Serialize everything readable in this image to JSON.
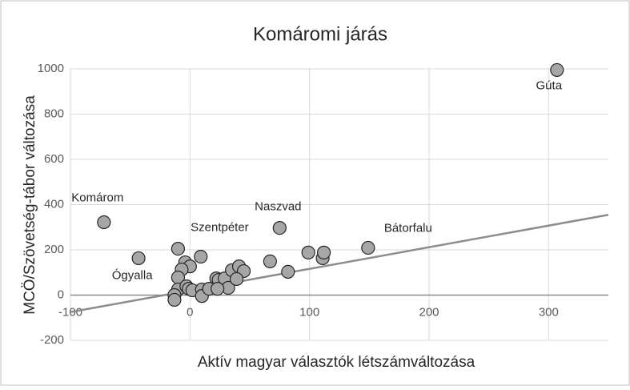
{
  "chart_data": {
    "type": "scatter",
    "title": "Komáromi járás",
    "x_label": "Aktív magyar választók létszámváltozása",
    "y_label": "MCÖ/Szövetség-tábor változása",
    "x": [
      307,
      -72,
      -43,
      -10,
      75,
      149,
      9,
      -4,
      0,
      -7,
      -10,
      -10,
      -13,
      -13,
      -3,
      -1,
      2,
      10,
      10,
      16,
      22,
      24,
      29,
      32,
      23,
      35,
      41,
      45,
      39,
      67,
      82,
      99,
      111,
      112
    ],
    "y": [
      995,
      322,
      163,
      205,
      297,
      209,
      170,
      145,
      127,
      113,
      78,
      25,
      0,
      -21,
      39,
      28,
      21,
      25,
      -4,
      28,
      74,
      67,
      74,
      32,
      28,
      110,
      127,
      106,
      71,
      149,
      103,
      188,
      163,
      188
    ],
    "labels": [
      "Gúta",
      "Komárom",
      "Ógyalla",
      "Szentpéter",
      "Naszvad",
      "Bátorfalu",
      null,
      null,
      null,
      null,
      null,
      null,
      null,
      null,
      null,
      null,
      null,
      null,
      null,
      null,
      null,
      null,
      null,
      null,
      null,
      null,
      null,
      null,
      null,
      null,
      null,
      null,
      null,
      null
    ],
    "color": "#a6a6a6",
    "trendline": {
      "x": [
        -100,
        350
      ],
      "y": [
        -75,
        355
      ],
      "color": "#8c8c8c"
    },
    "xlim": [
      -100,
      350
    ],
    "xticks": [
      -100,
      0,
      100,
      200,
      300
    ],
    "ylim": [
      -200,
      1000
    ],
    "yticks": [
      -200,
      0,
      200,
      400,
      600,
      800,
      1000
    ],
    "grid": true
  }
}
